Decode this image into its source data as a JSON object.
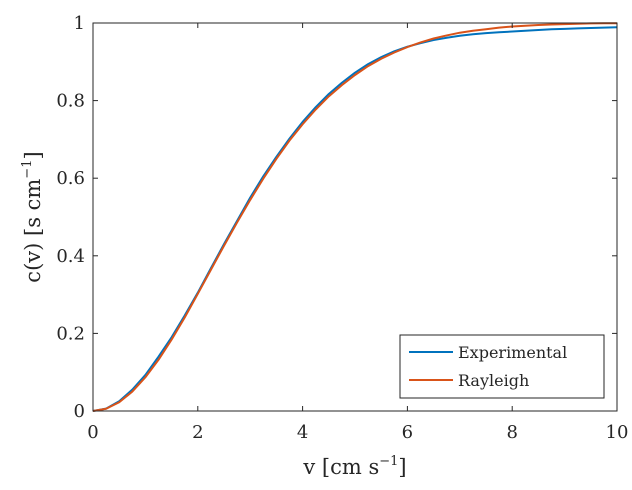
{
  "chart_data": {
    "type": "line",
    "xlabel": "v [cm s",
    "xlabel_sup": "−1",
    "xlabel_end": "]",
    "ylabel": "c(v)  [s cm",
    "ylabel_sup": "−1",
    "ylabel_end": "]",
    "xlim": [
      0,
      10
    ],
    "ylim": [
      0,
      1
    ],
    "xticks": [
      "0",
      "2",
      "4",
      "6",
      "8",
      "10"
    ],
    "yticks": [
      "0",
      "0.2",
      "0.4",
      "0.6",
      "0.8",
      "1"
    ],
    "grid": false,
    "legend_position": "bottom-right",
    "series": [
      {
        "name": "Experimental",
        "color": "#0072bd",
        "x": [
          0,
          0.25,
          0.5,
          0.75,
          1,
          1.25,
          1.5,
          1.75,
          2,
          2.25,
          2.5,
          2.75,
          3,
          3.25,
          3.5,
          3.75,
          4,
          4.25,
          4.5,
          4.75,
          5,
          5.25,
          5.5,
          5.75,
          6,
          6.25,
          6.5,
          6.75,
          7,
          7.25,
          7.5,
          7.75,
          8,
          8.25,
          8.5,
          8.75,
          9,
          9.25,
          9.5,
          9.75,
          10
        ],
        "y": [
          0,
          0.006,
          0.025,
          0.055,
          0.093,
          0.14,
          0.19,
          0.246,
          0.305,
          0.368,
          0.43,
          0.49,
          0.55,
          0.605,
          0.655,
          0.702,
          0.745,
          0.783,
          0.817,
          0.846,
          0.872,
          0.894,
          0.912,
          0.927,
          0.939,
          0.948,
          0.956,
          0.962,
          0.967,
          0.971,
          0.974,
          0.976,
          0.978,
          0.98,
          0.982,
          0.984,
          0.985,
          0.986,
          0.987,
          0.988,
          0.989
        ]
      },
      {
        "name": "Rayleigh",
        "color": "#d95319",
        "x": [
          0,
          0.25,
          0.5,
          0.75,
          1,
          1.25,
          1.5,
          1.75,
          2,
          2.25,
          2.5,
          2.75,
          3,
          3.25,
          3.5,
          3.75,
          4,
          4.25,
          4.5,
          4.75,
          5,
          5.25,
          5.5,
          5.75,
          6,
          6.25,
          6.5,
          6.75,
          7,
          7.25,
          7.5,
          7.75,
          8,
          8.25,
          8.5,
          8.75,
          9,
          9.25,
          9.5,
          9.75,
          10
        ],
        "y": [
          0,
          0.0057,
          0.0226,
          0.05,
          0.087,
          0.132,
          0.184,
          0.241,
          0.302,
          0.364,
          0.426,
          0.486,
          0.544,
          0.599,
          0.65,
          0.697,
          0.739,
          0.777,
          0.811,
          0.84,
          0.866,
          0.889,
          0.908,
          0.924,
          0.938,
          0.95,
          0.96,
          0.968,
          0.975,
          0.98,
          0.984,
          0.988,
          0.991,
          0.993,
          0.995,
          0.996,
          0.997,
          0.998,
          0.999,
          0.9993,
          0.9995
        ]
      }
    ]
  }
}
